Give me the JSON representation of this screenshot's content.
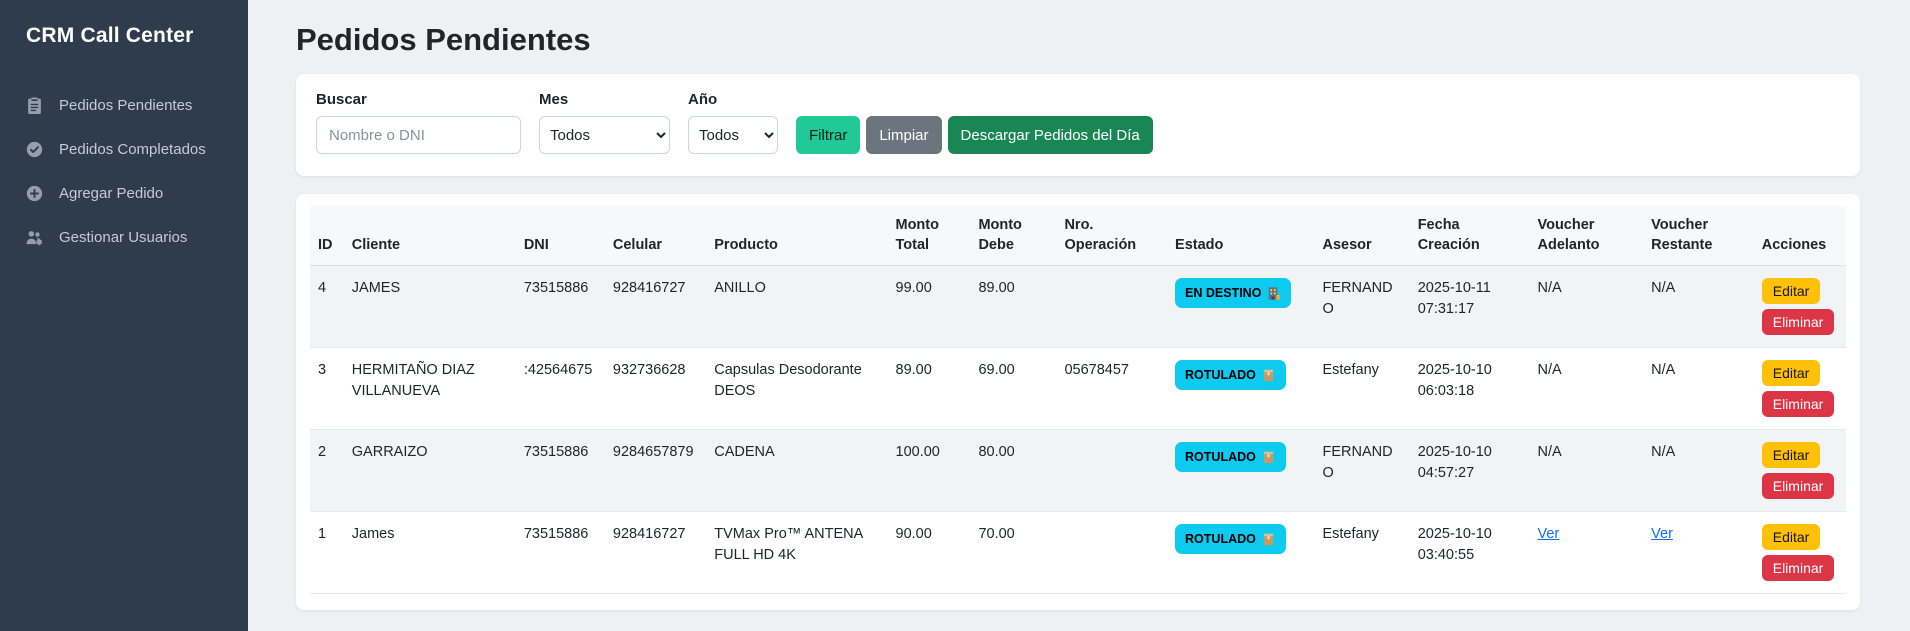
{
  "sidebar": {
    "title": "CRM Call Center",
    "items": [
      {
        "label": "Pedidos Pendientes"
      },
      {
        "label": "Pedidos Completados"
      },
      {
        "label": "Agregar Pedido"
      },
      {
        "label": "Gestionar Usuarios"
      }
    ]
  },
  "page": {
    "title": "Pedidos Pendientes"
  },
  "filters": {
    "search": {
      "label": "Buscar",
      "placeholder": "Nombre o DNI",
      "value": ""
    },
    "month": {
      "label": "Mes",
      "value": "Todos"
    },
    "year": {
      "label": "Año",
      "value": "Todos"
    },
    "buttons": {
      "filter": "Filtrar",
      "clear": "Limpiar",
      "download": "Descargar Pedidos del Día"
    }
  },
  "table": {
    "columns": [
      "ID",
      "Cliente",
      "DNI",
      "Celular",
      "Producto",
      "Monto Total",
      "Monto Debe",
      "Nro. Operación",
      "Estado",
      "Asesor",
      "Fecha Creación",
      "Voucher Adelanto",
      "Voucher Restante",
      "Acciones"
    ],
    "action_labels": {
      "edit": "Editar",
      "delete": "Eliminar"
    },
    "rows": [
      {
        "id": "4",
        "cliente": "JAMES",
        "dni": "73515886",
        "celular": "928416727",
        "producto": "ANILLO",
        "monto_total": "99.00",
        "monto_debe": "89.00",
        "nro_operacion": "",
        "estado": {
          "label": "EN DESTINO",
          "icon": "building-icon"
        },
        "asesor": "FERNANDO",
        "fecha_creacion": {
          "date": "2025-10-11",
          "time": "07:31:17"
        },
        "voucher_adelanto": {
          "type": "text",
          "label": "N/A"
        },
        "voucher_restante": {
          "type": "text",
          "label": "N/A"
        }
      },
      {
        "id": "3",
        "cliente": "HERMITAÑO DIAZ VILLANUEVA",
        "dni": ":42564675",
        "celular": "932736628",
        "producto": "Capsulas Desodorante DEOS",
        "monto_total": "89.00",
        "monto_debe": "69.00",
        "nro_operacion": "05678457",
        "estado": {
          "label": "ROTULADO",
          "icon": "package-icon"
        },
        "asesor": "Estefany",
        "fecha_creacion": {
          "date": "2025-10-10",
          "time": "06:03:18"
        },
        "voucher_adelanto": {
          "type": "text",
          "label": "N/A"
        },
        "voucher_restante": {
          "type": "text",
          "label": "N/A"
        }
      },
      {
        "id": "2",
        "cliente": "GARRAIZO",
        "dni": "73515886",
        "celular": "9284657879",
        "producto": "CADENA",
        "monto_total": "100.00",
        "monto_debe": "80.00",
        "nro_operacion": "",
        "estado": {
          "label": "ROTULADO",
          "icon": "package-icon"
        },
        "asesor": "FERNANDO",
        "fecha_creacion": {
          "date": "2025-10-10",
          "time": "04:57:27"
        },
        "voucher_adelanto": {
          "type": "text",
          "label": "N/A"
        },
        "voucher_restante": {
          "type": "text",
          "label": "N/A"
        }
      },
      {
        "id": "1",
        "cliente": "James",
        "dni": "73515886",
        "celular": "928416727",
        "producto": "TVMax Pro™ ANTENA FULL HD 4K",
        "monto_total": "90.00",
        "monto_debe": "70.00",
        "nro_operacion": "",
        "estado": {
          "label": "ROTULADO",
          "icon": "package-icon"
        },
        "asesor": "Estefany",
        "fecha_creacion": {
          "date": "2025-10-10",
          "time": "03:40:55"
        },
        "voucher_adelanto": {
          "type": "link",
          "label": "Ver"
        },
        "voucher_restante": {
          "type": "link",
          "label": "Ver"
        }
      }
    ]
  },
  "colors": {
    "sidebar_bg": "#2e3c4e",
    "badge_info": "#0dcaf0",
    "btn_filter": "#20c997",
    "btn_clear": "#6c757d",
    "btn_download": "#198754",
    "btn_edit": "#ffc107",
    "btn_delete": "#dc3545",
    "link": "#0d6efd"
  }
}
